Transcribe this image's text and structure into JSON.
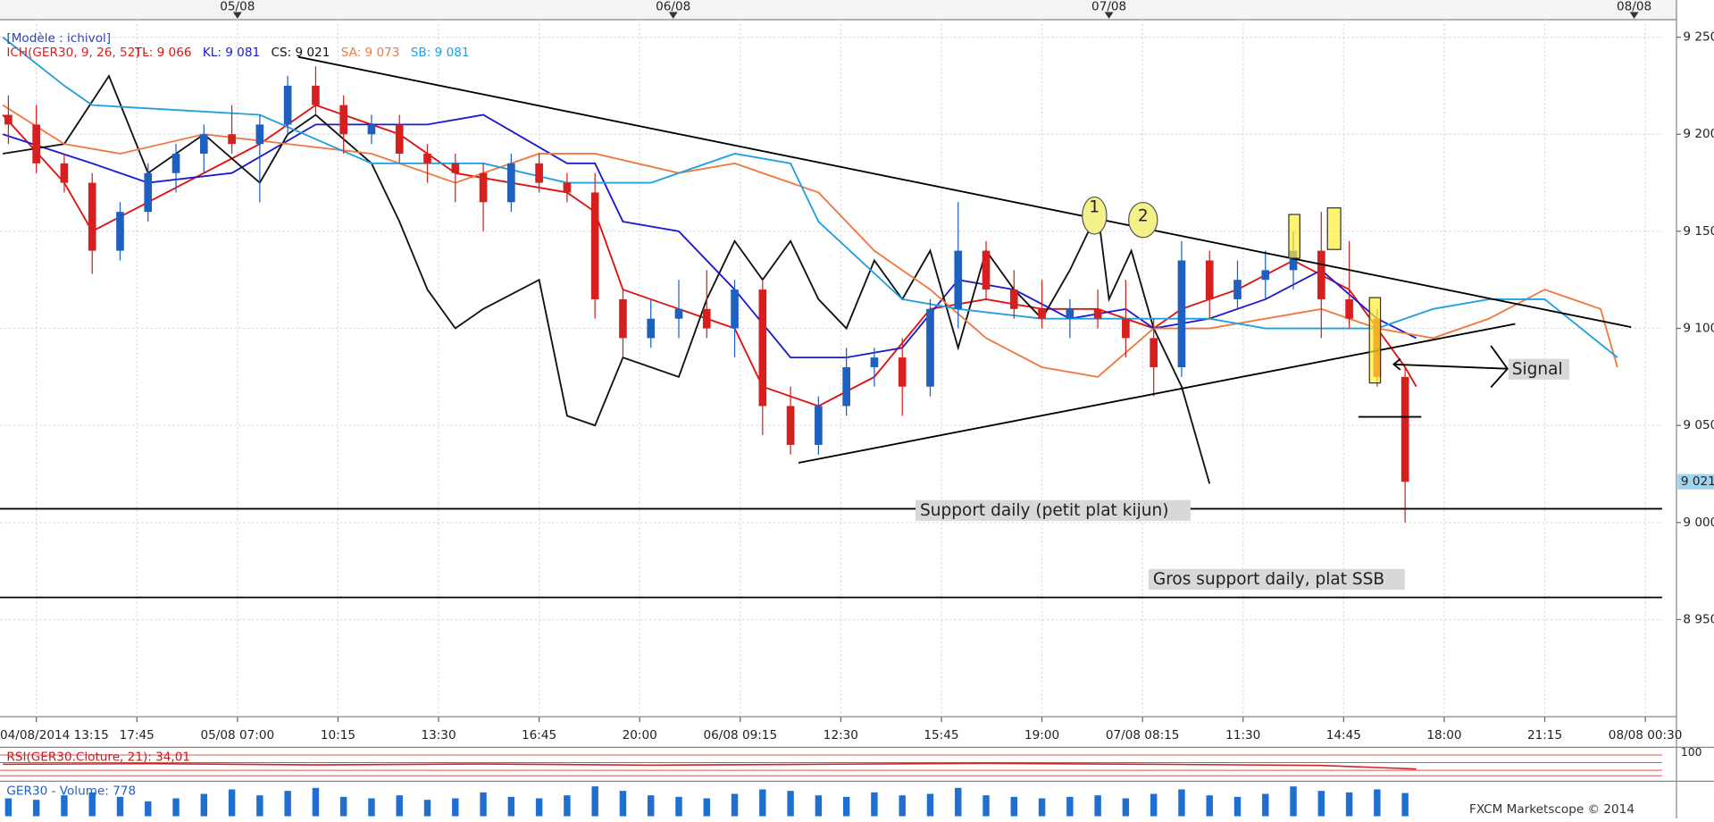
{
  "chart_data": [
    {
      "type": "candlestick",
      "model": "[Modèle : ichivol]",
      "indicator": "ICH(GER30, 9, 26, 52) -",
      "candles": {
        "x": [
          -5,
          0,
          5,
          10,
          15,
          20,
          25,
          30,
          35,
          40,
          45,
          50,
          55,
          60,
          65,
          70,
          75,
          80,
          85,
          90,
          95,
          100,
          105,
          110,
          115,
          120,
          125,
          130,
          135,
          140,
          145,
          150,
          155,
          160,
          165,
          170,
          175,
          180,
          185,
          190,
          195,
          200,
          205,
          210,
          215,
          220,
          225,
          230,
          235,
          240,
          245
        ],
        "open": [
          9210,
          9205,
          9185,
          9175,
          9140,
          9160,
          9180,
          9190,
          9200,
          9195,
          9205,
          9225,
          9215,
          9200,
          9205,
          9190,
          9185,
          9180,
          9165,
          9185,
          9175,
          9170,
          9115,
          9095,
          9105,
          9110,
          9100,
          9120,
          9060,
          9040,
          9060,
          9080,
          9085,
          9070,
          9110,
          9140,
          9120,
          9110,
          9105,
          9110,
          9105,
          9095,
          9080,
          9135,
          9115,
          9125,
          9130,
          9140,
          9115,
          9105,
          9075
        ],
        "high": [
          9220,
          9215,
          9190,
          9180,
          9165,
          9185,
          9195,
          9205,
          9215,
          9210,
          9230,
          9235,
          9220,
          9210,
          9210,
          9195,
          9190,
          9185,
          9190,
          9190,
          9180,
          9180,
          9120,
          9115,
          9125,
          9130,
          9125,
          9125,
          9070,
          9065,
          9090,
          9090,
          9095,
          9115,
          9165,
          9145,
          9130,
          9125,
          9115,
          9120,
          9125,
          9105,
          9145,
          9140,
          9135,
          9140,
          9150,
          9160,
          9145,
          9110,
          9080
        ],
        "low": [
          9195,
          9180,
          9170,
          9128,
          9135,
          9155,
          9170,
          9180,
          9190,
          9165,
          9200,
          9210,
          9190,
          9195,
          9185,
          9175,
          9165,
          9150,
          9160,
          9170,
          9165,
          9105,
          9085,
          9090,
          9095,
          9095,
          9085,
          9045,
          9035,
          9035,
          9055,
          9070,
          9055,
          9065,
          9100,
          9115,
          9105,
          9100,
          9095,
          9100,
          9085,
          9065,
          9075,
          9105,
          9110,
          9115,
          9120,
          9095,
          9100,
          9070,
          9000
        ],
        "close": [
          9205,
          9185,
          9175,
          9140,
          9160,
          9180,
          9190,
          9200,
          9195,
          9205,
          9225,
          9215,
          9200,
          9205,
          9190,
          9185,
          9180,
          9165,
          9185,
          9175,
          9170,
          9115,
          9095,
          9105,
          9110,
          9100,
          9120,
          9060,
          9040,
          9060,
          9080,
          9085,
          9070,
          9110,
          9140,
          9120,
          9110,
          9105,
          9110,
          9105,
          9095,
          9080,
          9135,
          9115,
          9125,
          9130,
          9140,
          9115,
          9105,
          9075,
          9021
        ],
        "up_color": "#1f5fbf",
        "down_color": "#d62020"
      },
      "series": [
        {
          "name": "TL: 9 066",
          "color": "#e01010",
          "x": [
            -6,
            5,
            10,
            20,
            30,
            40,
            50,
            65,
            75,
            85,
            95,
            100,
            105,
            115,
            125,
            130,
            140,
            150,
            160,
            170,
            180,
            190,
            200,
            205,
            215,
            225,
            235,
            245,
            247
          ],
          "values": [
            9210,
            9175,
            9150,
            9165,
            9180,
            9195,
            9215,
            9200,
            9180,
            9175,
            9170,
            9160,
            9120,
            9110,
            9100,
            9070,
            9060,
            9075,
            9110,
            9115,
            9110,
            9110,
            9100,
            9110,
            9120,
            9135,
            9120,
            9080,
            9070
          ]
        },
        {
          "name": "KL: 9 081",
          "color": "#1a1ad0",
          "x": [
            -6,
            10,
            20,
            35,
            50,
            70,
            80,
            95,
            100,
            105,
            115,
            125,
            135,
            145,
            155,
            165,
            175,
            185,
            195,
            200,
            210,
            220,
            230,
            240,
            247
          ],
          "values": [
            9200,
            9185,
            9175,
            9180,
            9205,
            9205,
            9210,
            9185,
            9185,
            9155,
            9150,
            9120,
            9085,
            9085,
            9090,
            9125,
            9120,
            9105,
            9110,
            9100,
            9105,
            9115,
            9130,
            9105,
            9095
          ]
        },
        {
          "name": "CS: 9 021",
          "color": "#111111",
          "x": [
            -6,
            5,
            13,
            20,
            30,
            40,
            45,
            50,
            60,
            65,
            70,
            75,
            80,
            90,
            95,
            100,
            105,
            110,
            115,
            120,
            125,
            130,
            135,
            140,
            145,
            150,
            155,
            160,
            165,
            170,
            175,
            180,
            185,
            190,
            192,
            196,
            200,
            205,
            210
          ],
          "values": [
            9190,
            9195,
            9230,
            9180,
            9200,
            9175,
            9200,
            9210,
            9185,
            9155,
            9120,
            9100,
            9110,
            9125,
            9055,
            9050,
            9085,
            9080,
            9075,
            9115,
            9145,
            9125,
            9145,
            9115,
            9100,
            9135,
            9115,
            9140,
            9090,
            9140,
            9120,
            9105,
            9130,
            9160,
            9115,
            9140,
            9100,
            9070,
            9020
          ]
        },
        {
          "name": "SA: 9 073",
          "color": "#f07840",
          "x": [
            -6,
            5,
            15,
            30,
            45,
            60,
            75,
            90,
            100,
            115,
            125,
            140,
            150,
            160,
            170,
            180,
            190,
            200,
            210,
            220,
            230,
            240,
            250,
            260,
            270,
            280,
            283
          ],
          "values": [
            9215,
            9195,
            9190,
            9200,
            9195,
            9190,
            9175,
            9190,
            9190,
            9180,
            9185,
            9170,
            9140,
            9120,
            9095,
            9080,
            9075,
            9100,
            9100,
            9105,
            9110,
            9100,
            9095,
            9105,
            9120,
            9110,
            9080
          ]
        },
        {
          "name": "SB: 9 081",
          "color": "#20a0e0",
          "x": [
            -6,
            5,
            10,
            40,
            60,
            80,
            95,
            110,
            125,
            135,
            140,
            155,
            165,
            180,
            190,
            200,
            210,
            220,
            230,
            240,
            250,
            260,
            270,
            283
          ],
          "values": [
            9250,
            9225,
            9215,
            9210,
            9185,
            9185,
            9175,
            9175,
            9190,
            9185,
            9155,
            9115,
            9110,
            9105,
            9105,
            9105,
            9105,
            9100,
            9100,
            9100,
            9110,
            9115,
            9115,
            9085
          ]
        }
      ],
      "xlim": [
        -6.5,
        291
      ],
      "xticks": [
        {
          "value": 0,
          "label": "04/08/2014 13:15"
        },
        {
          "value": 18,
          "label": "17:45"
        },
        {
          "value": 36,
          "label": "05/08 07:00"
        },
        {
          "value": 54,
          "label": "10:15"
        },
        {
          "value": 72,
          "label": "13:30"
        },
        {
          "value": 90,
          "label": "16:45"
        },
        {
          "value": 108,
          "label": "20:00"
        },
        {
          "value": 126,
          "label": "06/08 09:15"
        },
        {
          "value": 144,
          "label": "12:30"
        },
        {
          "value": 162,
          "label": "15:45"
        },
        {
          "value": 180,
          "label": "19:00"
        },
        {
          "value": 198,
          "label": "07/08 08:15"
        },
        {
          "value": 216,
          "label": "11:30"
        },
        {
          "value": 234,
          "label": "14:45"
        },
        {
          "value": 252,
          "label": "18:00"
        },
        {
          "value": 270,
          "label": "21:15"
        },
        {
          "value": 288,
          "label": "08/08 00:30"
        }
      ],
      "date_markers": [
        {
          "value": 36,
          "label": "05/08"
        },
        {
          "value": 114,
          "label": "06/08"
        },
        {
          "value": 192,
          "label": "07/08"
        },
        {
          "value": 286,
          "label": "08/08"
        }
      ],
      "ylim": [
        8900,
        9259
      ],
      "yticks": [
        {
          "value": 8950,
          "label": "8 950"
        },
        {
          "value": 9000,
          "label": "9 000"
        },
        {
          "value": 9050,
          "label": "9 050"
        },
        {
          "value": 9100,
          "label": "9 100"
        },
        {
          "value": 9150,
          "label": "9 150"
        },
        {
          "value": 9200,
          "label": "9 200"
        },
        {
          "value": 9250,
          "label": "9 250"
        }
      ],
      "grid": true,
      "last_price": {
        "value": 9021,
        "label": "9 021"
      },
      "annotations": {
        "support_kijun": "Support daily (petit plat kijun)",
        "support_ssb": "Gros support daily, plat SSB",
        "signal": "Signal",
        "point_1": "1",
        "point_2": "2"
      }
    },
    {
      "type": "line",
      "title": "RSI(GER30.Cloture, 21): 34,01",
      "color": "#d62020",
      "x": [
        -6,
        20,
        50,
        80,
        110,
        140,
        170,
        200,
        230,
        247
      ],
      "values": [
        50,
        52,
        48,
        51,
        47,
        50,
        53,
        50,
        46,
        34.01
      ],
      "ylim": [
        0,
        100
      ],
      "yticks": [
        100
      ]
    },
    {
      "type": "bar",
      "title": "GER30 - Volume: 778",
      "color": "#1f6fd0",
      "x": [
        -5,
        0,
        5,
        10,
        15,
        20,
        25,
        30,
        35,
        40,
        45,
        50,
        55,
        60,
        65,
        70,
        75,
        80,
        85,
        90,
        95,
        100,
        105,
        110,
        115,
        120,
        125,
        130,
        135,
        140,
        145,
        150,
        155,
        160,
        165,
        170,
        175,
        180,
        185,
        190,
        195,
        200,
        205,
        210,
        215,
        220,
        225,
        230,
        235,
        240,
        245
      ],
      "values": [
        600,
        550,
        700,
        800,
        650,
        500,
        600,
        750,
        900,
        700,
        850,
        950,
        650,
        600,
        700,
        550,
        600,
        800,
        650,
        600,
        700,
        1000,
        850,
        700,
        650,
        600,
        750,
        900,
        850,
        700,
        650,
        800,
        700,
        750,
        950,
        700,
        650,
        600,
        650,
        700,
        600,
        750,
        900,
        700,
        650,
        750,
        1000,
        850,
        800,
        900,
        778
      ],
      "ylim": [
        0,
        1100
      ],
      "footer": "FXCM Marketscope © 2014"
    }
  ]
}
